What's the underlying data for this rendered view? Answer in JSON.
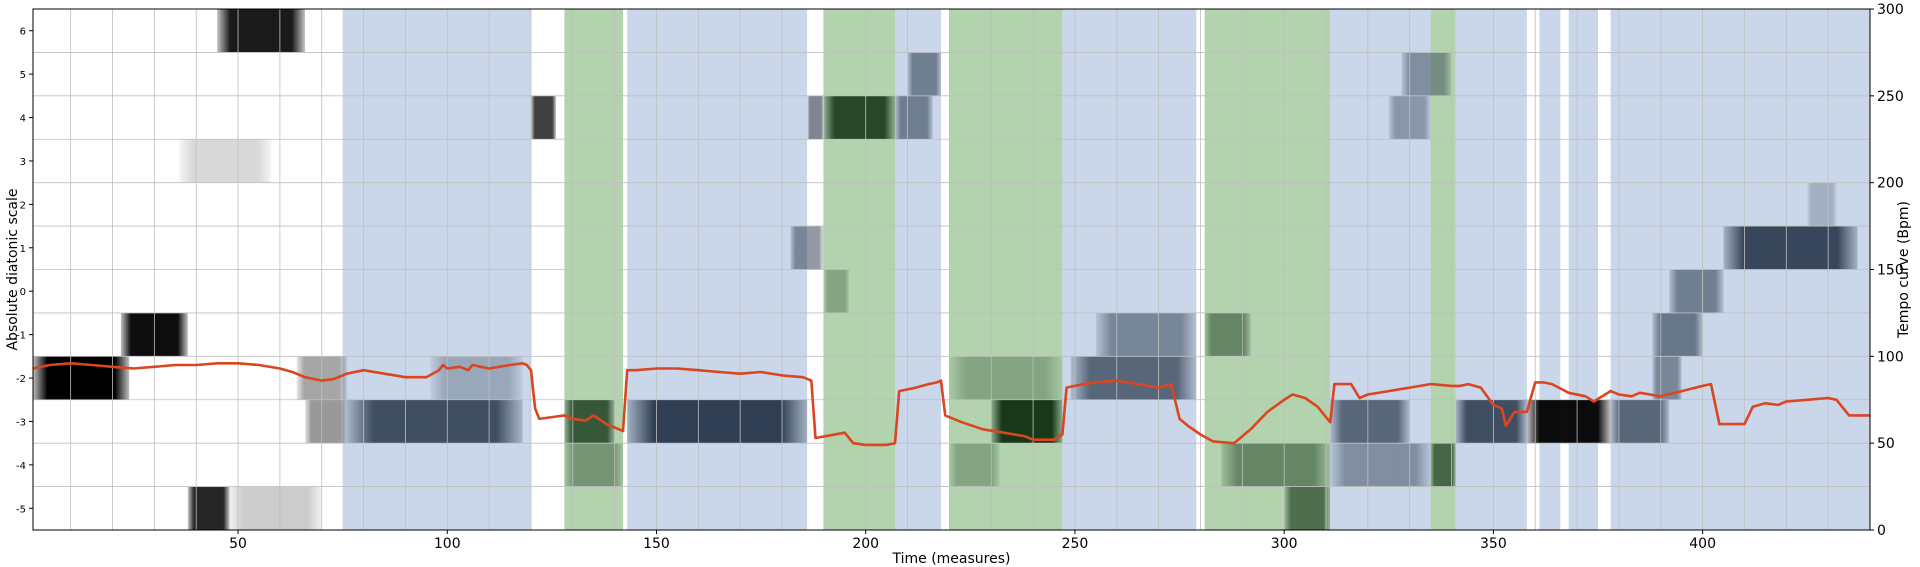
{
  "chart_data": {
    "type": "heatmap",
    "xlabel": "Time (measures)",
    "ylabel_left": "Absolute diatonic scale",
    "ylabel_right": "Tempo curve (Bpm)",
    "xlim": [
      1,
      440
    ],
    "xticks": [
      50,
      100,
      150,
      200,
      250,
      300,
      350,
      400
    ],
    "y_left_categories": [
      -5,
      -4,
      -3,
      -2,
      -1,
      0,
      1,
      2,
      3,
      4,
      5,
      6
    ],
    "y_right_lim": [
      0,
      300
    ],
    "y_right_ticks": [
      0,
      50,
      100,
      150,
      200,
      250,
      300
    ],
    "grid": true,
    "colors": {
      "tempo_line": "#d9461f",
      "blue_band": "#b3c6e3",
      "green_band": "#93c18d",
      "heat_black": "#000000",
      "heat_blue": "#27364a",
      "heat_green": "#17391a",
      "grid": "#bfbfbf"
    },
    "bands": [
      {
        "start": 75,
        "end": 120,
        "color": "blue"
      },
      {
        "start": 128,
        "end": 142,
        "color": "green"
      },
      {
        "start": 143,
        "end": 186,
        "color": "blue"
      },
      {
        "start": 190,
        "end": 207,
        "color": "green"
      },
      {
        "start": 207,
        "end": 218,
        "color": "blue"
      },
      {
        "start": 220,
        "end": 247,
        "color": "green"
      },
      {
        "start": 247,
        "end": 279,
        "color": "blue"
      },
      {
        "start": 281,
        "end": 311,
        "color": "green"
      },
      {
        "start": 311,
        "end": 335,
        "color": "blue"
      },
      {
        "start": 335,
        "end": 341,
        "color": "green"
      },
      {
        "start": 341,
        "end": 358,
        "color": "blue"
      },
      {
        "start": 361,
        "end": 366,
        "color": "blue"
      },
      {
        "start": 368,
        "end": 375,
        "color": "blue"
      },
      {
        "start": 378,
        "end": 440,
        "color": "blue"
      }
    ],
    "heat_blocks": [
      {
        "row": 6,
        "start": 45,
        "end": 66,
        "intensity": 0.9,
        "color": "black"
      },
      {
        "row": 4,
        "start": 120,
        "end": 126,
        "intensity": 0.75,
        "color": "black"
      },
      {
        "row": 3,
        "start": 36,
        "end": 58,
        "intensity": 0.15,
        "color": "black"
      },
      {
        "row": -1,
        "start": 22,
        "end": 38,
        "intensity": 0.95,
        "color": "black"
      },
      {
        "row": -2,
        "start": 1,
        "end": 24,
        "intensity": 1.0,
        "color": "black"
      },
      {
        "row": -2,
        "start": 64,
        "end": 76,
        "intensity": 0.35,
        "color": "black"
      },
      {
        "row": -3,
        "start": 66,
        "end": 76,
        "intensity": 0.4,
        "color": "black"
      },
      {
        "row": -5,
        "start": 38,
        "end": 48,
        "intensity": 0.85,
        "color": "black"
      },
      {
        "row": -5,
        "start": 48,
        "end": 70,
        "intensity": 0.2,
        "color": "black"
      },
      {
        "row": -3,
        "start": 76,
        "end": 118,
        "intensity": 0.85,
        "color": "blue"
      },
      {
        "row": -3,
        "start": 143,
        "end": 186,
        "intensity": 0.95,
        "color": "blue"
      },
      {
        "row": -3,
        "start": 128,
        "end": 140,
        "intensity": 0.8,
        "color": "green"
      },
      {
        "row": -4,
        "start": 128,
        "end": 142,
        "intensity": 0.4,
        "color": "green"
      },
      {
        "row": -2,
        "start": 96,
        "end": 118,
        "intensity": 0.3,
        "color": "blue"
      },
      {
        "row": 4,
        "start": 186,
        "end": 190,
        "intensity": 0.6,
        "color": "blue"
      },
      {
        "row": 4,
        "start": 190,
        "end": 207,
        "intensity": 0.9,
        "color": "green"
      },
      {
        "row": 4,
        "start": 207,
        "end": 216,
        "intensity": 0.55,
        "color": "blue"
      },
      {
        "row": 5,
        "start": 210,
        "end": 218,
        "intensity": 0.55,
        "color": "blue"
      },
      {
        "row": 1,
        "start": 182,
        "end": 190,
        "intensity": 0.5,
        "color": "blue"
      },
      {
        "row": 0,
        "start": 190,
        "end": 196,
        "intensity": 0.3,
        "color": "green"
      },
      {
        "row": -3,
        "start": 230,
        "end": 247,
        "intensity": 1.0,
        "color": "green"
      },
      {
        "row": -2,
        "start": 220,
        "end": 247,
        "intensity": 0.3,
        "color": "green"
      },
      {
        "row": -4,
        "start": 220,
        "end": 232,
        "intensity": 0.3,
        "color": "green"
      },
      {
        "row": -2,
        "start": 249,
        "end": 279,
        "intensity": 0.7,
        "color": "blue"
      },
      {
        "row": -1,
        "start": 255,
        "end": 279,
        "intensity": 0.5,
        "color": "blue"
      },
      {
        "row": -1,
        "start": 281,
        "end": 292,
        "intensity": 0.5,
        "color": "green"
      },
      {
        "row": -4,
        "start": 285,
        "end": 311,
        "intensity": 0.5,
        "color": "green"
      },
      {
        "row": -5,
        "start": 300,
        "end": 311,
        "intensity": 0.65,
        "color": "green"
      },
      {
        "row": -3,
        "start": 311,
        "end": 330,
        "intensity": 0.7,
        "color": "blue"
      },
      {
        "row": -4,
        "start": 311,
        "end": 335,
        "intensity": 0.45,
        "color": "blue"
      },
      {
        "row": -4,
        "start": 335,
        "end": 341,
        "intensity": 0.7,
        "color": "green"
      },
      {
        "row": 4,
        "start": 325,
        "end": 335,
        "intensity": 0.4,
        "color": "blue"
      },
      {
        "row": 5,
        "start": 328,
        "end": 340,
        "intensity": 0.45,
        "color": "blue"
      },
      {
        "row": -3,
        "start": 341,
        "end": 358,
        "intensity": 0.85,
        "color": "blue"
      },
      {
        "row": -3,
        "start": 358,
        "end": 378,
        "intensity": 0.95,
        "color": "black"
      },
      {
        "row": -3,
        "start": 378,
        "end": 392,
        "intensity": 0.7,
        "color": "blue"
      },
      {
        "row": 1,
        "start": 405,
        "end": 437,
        "intensity": 0.9,
        "color": "blue"
      },
      {
        "row": 0,
        "start": 392,
        "end": 405,
        "intensity": 0.55,
        "color": "blue"
      },
      {
        "row": -1,
        "start": 388,
        "end": 400,
        "intensity": 0.6,
        "color": "blue"
      },
      {
        "row": -2,
        "start": 388,
        "end": 395,
        "intensity": 0.5,
        "color": "blue"
      },
      {
        "row": 2,
        "start": 425,
        "end": 432,
        "intensity": 0.25,
        "color": "blue"
      }
    ],
    "tempo_curve": {
      "x": [
        1,
        5,
        10,
        15,
        20,
        25,
        30,
        35,
        40,
        45,
        50,
        55,
        60,
        63,
        66,
        70,
        73,
        76,
        80,
        85,
        90,
        95,
        98,
        99,
        100,
        103,
        105,
        106,
        108,
        110,
        115,
        118,
        119,
        120,
        121,
        122,
        125,
        128,
        130,
        133,
        135,
        138,
        140,
        142,
        143,
        145,
        150,
        155,
        160,
        165,
        170,
        175,
        180,
        185,
        187,
        188,
        195,
        197,
        200,
        205,
        207,
        208,
        212,
        215,
        217,
        218,
        219,
        223,
        228,
        233,
        238,
        240,
        245,
        247,
        248,
        252,
        255,
        260,
        265,
        270,
        273,
        275,
        277,
        280,
        283,
        288,
        292,
        296,
        300,
        302,
        305,
        308,
        311,
        312,
        313,
        316,
        318,
        320,
        325,
        330,
        335,
        340,
        342,
        344,
        347,
        350,
        352,
        353,
        355,
        358,
        360,
        362,
        364,
        368,
        372,
        374,
        378,
        380,
        383,
        385,
        390,
        395,
        400,
        402,
        404,
        408,
        410,
        412,
        415,
        418,
        420,
        425,
        430,
        432,
        435,
        440
      ],
      "y": [
        93,
        95,
        96,
        95,
        94,
        93,
        94,
        95,
        95,
        96,
        96,
        95,
        93,
        91,
        88,
        86,
        87,
        90,
        92,
        90,
        88,
        88,
        92,
        95,
        93,
        94,
        92,
        95,
        94,
        93,
        95,
        96,
        95,
        92,
        70,
        64,
        65,
        66,
        64,
        63,
        66,
        61,
        59,
        57,
        92,
        92,
        93,
        93,
        92,
        91,
        90,
        91,
        89,
        88,
        86,
        53,
        56,
        50,
        49,
        49,
        50,
        80,
        82,
        84,
        85,
        86,
        66,
        62,
        58,
        56,
        54,
        52,
        52,
        55,
        82,
        84,
        85,
        86,
        84,
        82,
        84,
        64,
        60,
        55,
        51,
        50,
        58,
        68,
        75,
        78,
        76,
        71,
        62,
        84,
        84,
        84,
        76,
        78,
        80,
        82,
        84,
        83,
        83,
        84,
        82,
        72,
        70,
        60,
        68,
        68,
        85,
        85,
        84,
        79,
        77,
        74,
        80,
        78,
        77,
        79,
        77,
        80,
        83,
        84,
        61,
        61,
        61,
        71,
        73,
        72,
        74,
        75,
        76,
        75,
        66,
        66
      ]
    }
  }
}
